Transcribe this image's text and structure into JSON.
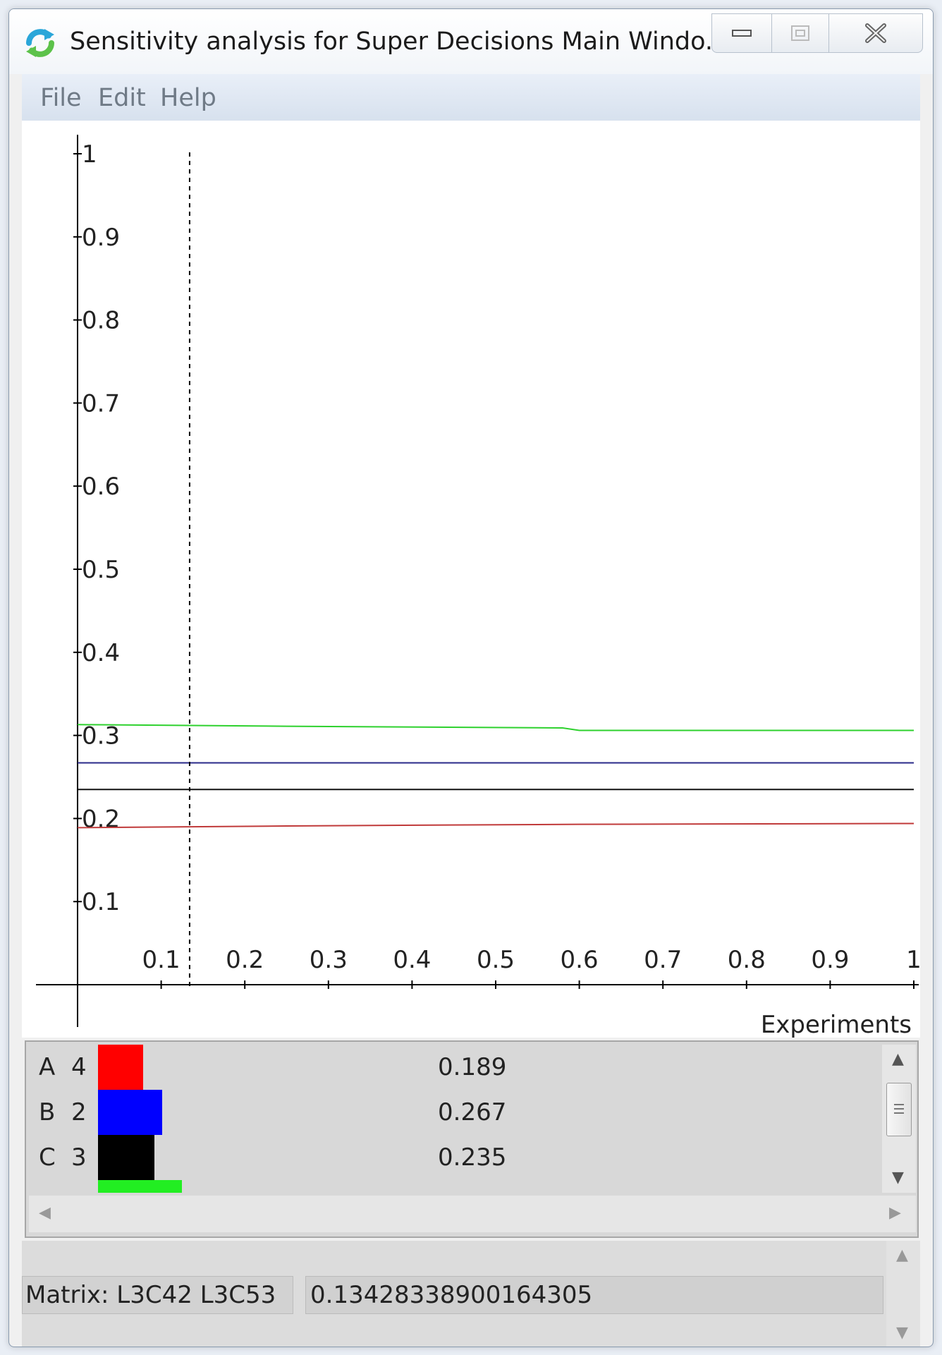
{
  "window": {
    "title": "Sensitivity analysis for Super Decisions Main Windo...",
    "icon": "refresh-icon"
  },
  "menu": {
    "items": [
      {
        "label": "File"
      },
      {
        "label": "Edit"
      },
      {
        "label": "Help"
      }
    ]
  },
  "chart_data": {
    "type": "line",
    "xlabel": "Experiments",
    "ylabel": "",
    "title": "",
    "xlim": [
      0,
      1
    ],
    "ylim": [
      0,
      1
    ],
    "x_ticks": [
      "0.1",
      "0.2",
      "0.3",
      "0.4",
      "0.5",
      "0.6",
      "0.7",
      "0.8",
      "0.9",
      "1"
    ],
    "y_ticks": [
      "0.1",
      "0.2",
      "0.3",
      "0.4",
      "0.5",
      "0.6",
      "0.7",
      "0.8",
      "0.9",
      "1"
    ],
    "x_marker": 0.134,
    "grid": false,
    "series": [
      {
        "color": "#2ed12e",
        "x": [
          0,
          0.25,
          0.58,
          0.6,
          1
        ],
        "y": [
          0.313,
          0.311,
          0.309,
          0.306,
          0.306
        ]
      },
      {
        "color": "#2a2a8a",
        "x": [
          0,
          1
        ],
        "y": [
          0.267,
          0.267
        ]
      },
      {
        "color": "#111111",
        "x": [
          0,
          1
        ],
        "y": [
          0.235,
          0.235
        ]
      },
      {
        "color": "#c03a3a",
        "x": [
          0,
          0.25,
          0.6,
          1
        ],
        "y": [
          0.189,
          0.191,
          0.193,
          0.194
        ]
      }
    ]
  },
  "legend": {
    "rows": [
      {
        "letter": "A",
        "number": "4",
        "value": "0.189",
        "color": "#ff0000",
        "bar_fraction": 0.189
      },
      {
        "letter": "B",
        "number": "2",
        "value": "0.267",
        "color": "#0000ff",
        "bar_fraction": 0.267
      },
      {
        "letter": "C",
        "number": "3",
        "value": "0.235",
        "color": "#000000",
        "bar_fraction": 0.235
      }
    ],
    "partial_row": {
      "color": "#22ee22",
      "bar_fraction": 0.306
    }
  },
  "status": {
    "matrix_label": "Matrix: L3C42 L3C53",
    "matrix_value": "0.13428338900164305"
  }
}
